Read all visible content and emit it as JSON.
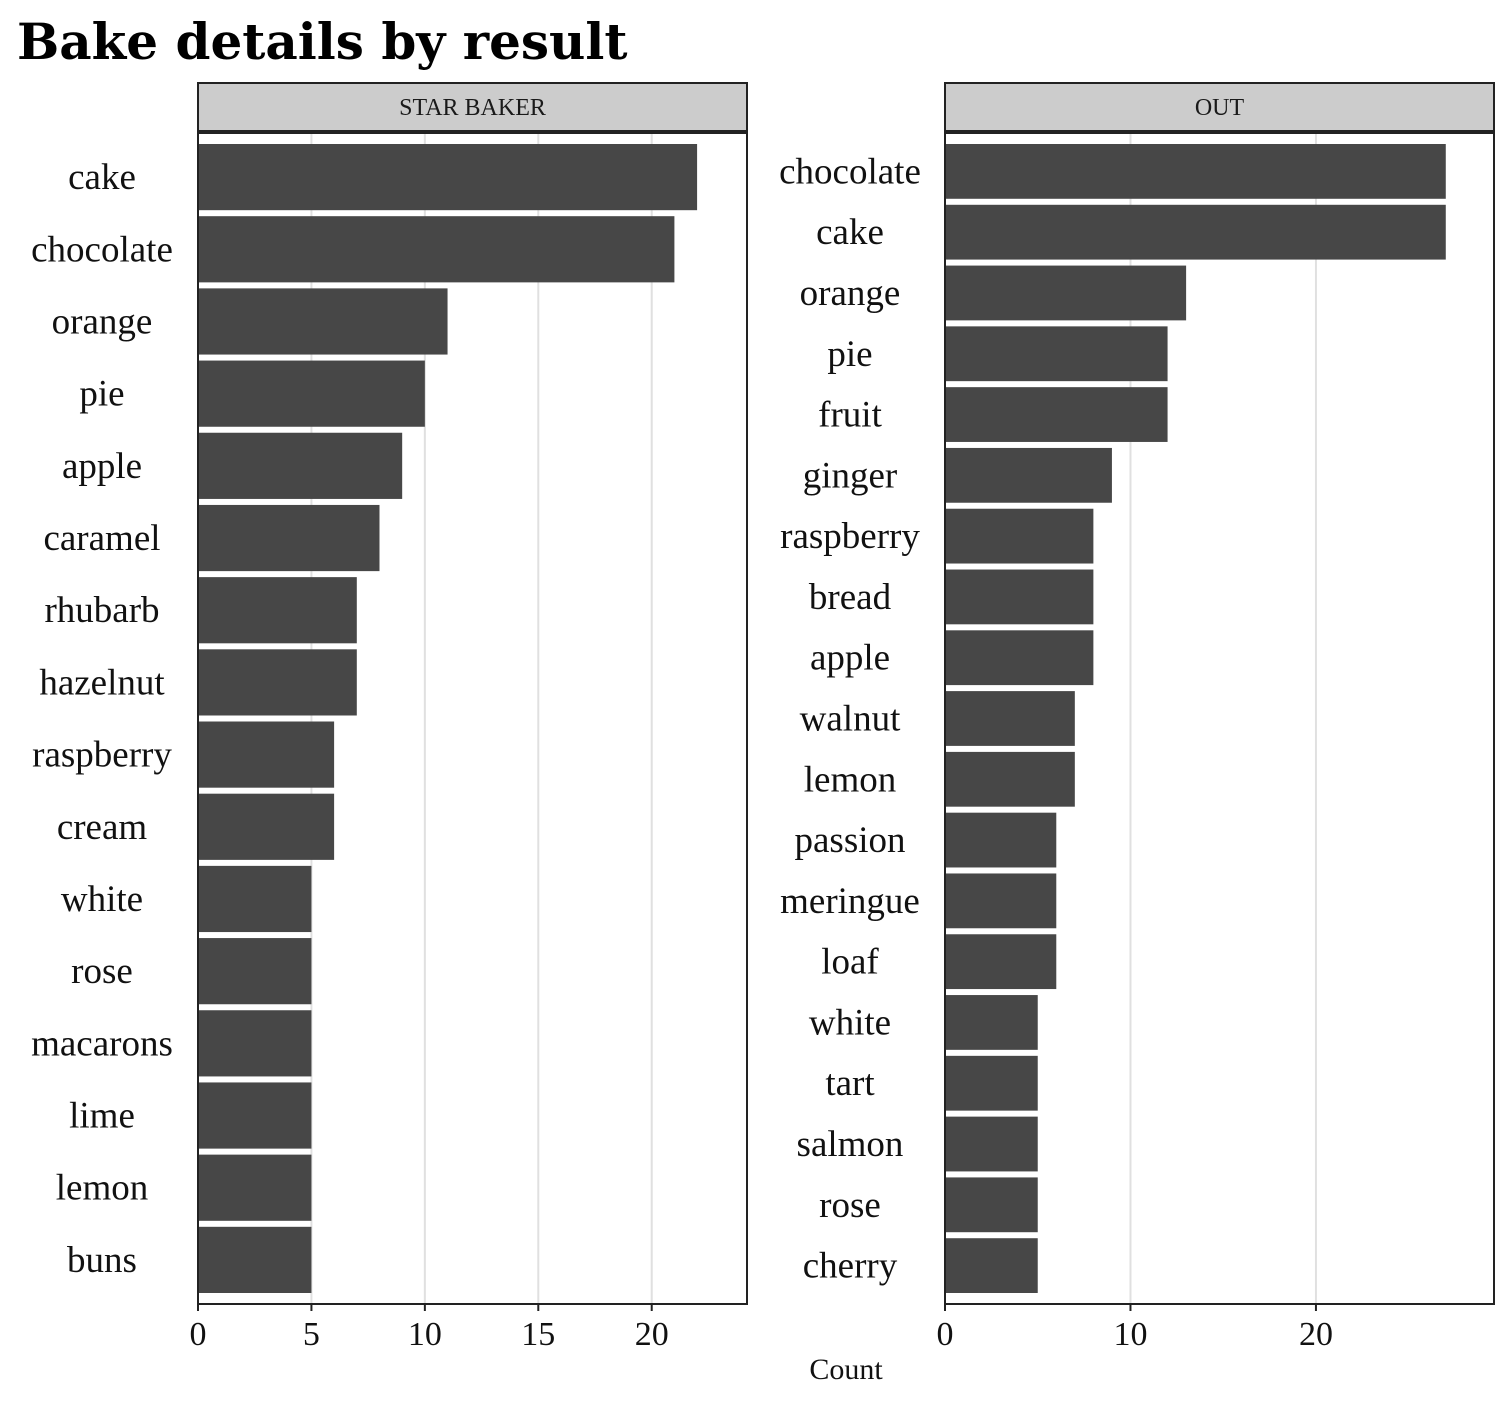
{
  "title": "Bake details by result",
  "x_axis_label": "Count",
  "colors": {
    "bar": "#474747",
    "strip": "#cccccc",
    "grid": "#e0e0e0",
    "frame": "#222222"
  },
  "chart_data": [
    {
      "type": "bar",
      "orientation": "horizontal",
      "panel": "STAR BAKER",
      "categories": [
        "cake",
        "chocolate",
        "orange",
        "pie",
        "apple",
        "caramel",
        "rhubarb",
        "hazelnut",
        "raspberry",
        "cream",
        "white",
        "rose",
        "macarons",
        "lime",
        "lemon",
        "buns"
      ],
      "values": [
        22,
        21,
        11,
        10,
        9,
        8,
        7,
        7,
        6,
        6,
        5,
        5,
        5,
        5,
        5,
        5
      ],
      "xlim": [
        0,
        24.2
      ],
      "xticks": [
        0,
        5,
        10,
        15,
        20
      ],
      "grid": true
    },
    {
      "type": "bar",
      "orientation": "horizontal",
      "panel": "OUT",
      "categories": [
        "chocolate",
        "cake",
        "orange",
        "pie",
        "fruit",
        "ginger",
        "raspberry",
        "bread",
        "apple",
        "walnut",
        "lemon",
        "passion",
        "meringue",
        "loaf",
        "white",
        "tart",
        "salmon",
        "rose",
        "cherry"
      ],
      "values": [
        27,
        27,
        13,
        12,
        12,
        9,
        8,
        8,
        8,
        7,
        7,
        6,
        6,
        6,
        5,
        5,
        5,
        5,
        5
      ],
      "xlim": [
        0,
        29.6
      ],
      "xticks": [
        0,
        10,
        20
      ],
      "grid": true
    }
  ]
}
